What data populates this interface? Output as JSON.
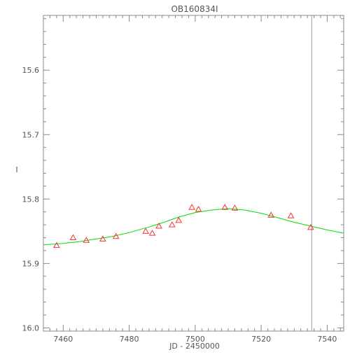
{
  "chart_data": {
    "type": "scatter",
    "title": "OB160834I",
    "xlabel": "JD - 2450000",
    "ylabel": "I",
    "xlim": [
      7454,
      7545
    ],
    "ylim": [
      16.005,
      15.515
    ],
    "y_inverted": true,
    "x_ticks": [
      7460,
      7480,
      7500,
      7520,
      7540
    ],
    "y_ticks": [
      15.6,
      15.7,
      15.8,
      15.9,
      16.0
    ],
    "x_tick_labels": [
      "7460",
      "7480",
      "7500",
      "7520",
      "7540"
    ],
    "y_tick_labels": [
      "15.6",
      "15.7",
      "15.8",
      "15.9",
      "16.0"
    ],
    "x_minor_step": 2,
    "y_minor_step": 0.02,
    "grid": false,
    "vertical_line_x": 7535.3,
    "series": [
      {
        "kind": "points",
        "marker": "open-triangle",
        "color": "#ff3030",
        "x": [
          7458,
          7463,
          7467,
          7472,
          7476,
          7485,
          7487,
          7489,
          7493,
          7495,
          7499,
          7501,
          7509,
          7512,
          7523,
          7529,
          7535
        ],
        "y": [
          15.872,
          15.86,
          15.864,
          15.862,
          15.858,
          15.85,
          15.853,
          15.842,
          15.84,
          15.833,
          15.813,
          15.816,
          15.813,
          15.814,
          15.825,
          15.826,
          15.844
        ]
      },
      {
        "kind": "line",
        "color": "#00dd00",
        "x": [
          7454,
          7460,
          7465,
          7470,
          7475,
          7480,
          7485,
          7490,
          7495,
          7500,
          7505,
          7510,
          7515,
          7520,
          7525,
          7530,
          7535,
          7540,
          7545
        ],
        "y": [
          15.871,
          15.869,
          15.866,
          15.862,
          15.858,
          15.852,
          15.845,
          15.837,
          15.828,
          15.821,
          15.817,
          15.815,
          15.817,
          15.822,
          15.829,
          15.836,
          15.842,
          15.848,
          15.853
        ]
      }
    ]
  },
  "colors": {
    "axis": "#888888",
    "text": "#555555",
    "vline": "#9999bb"
  }
}
